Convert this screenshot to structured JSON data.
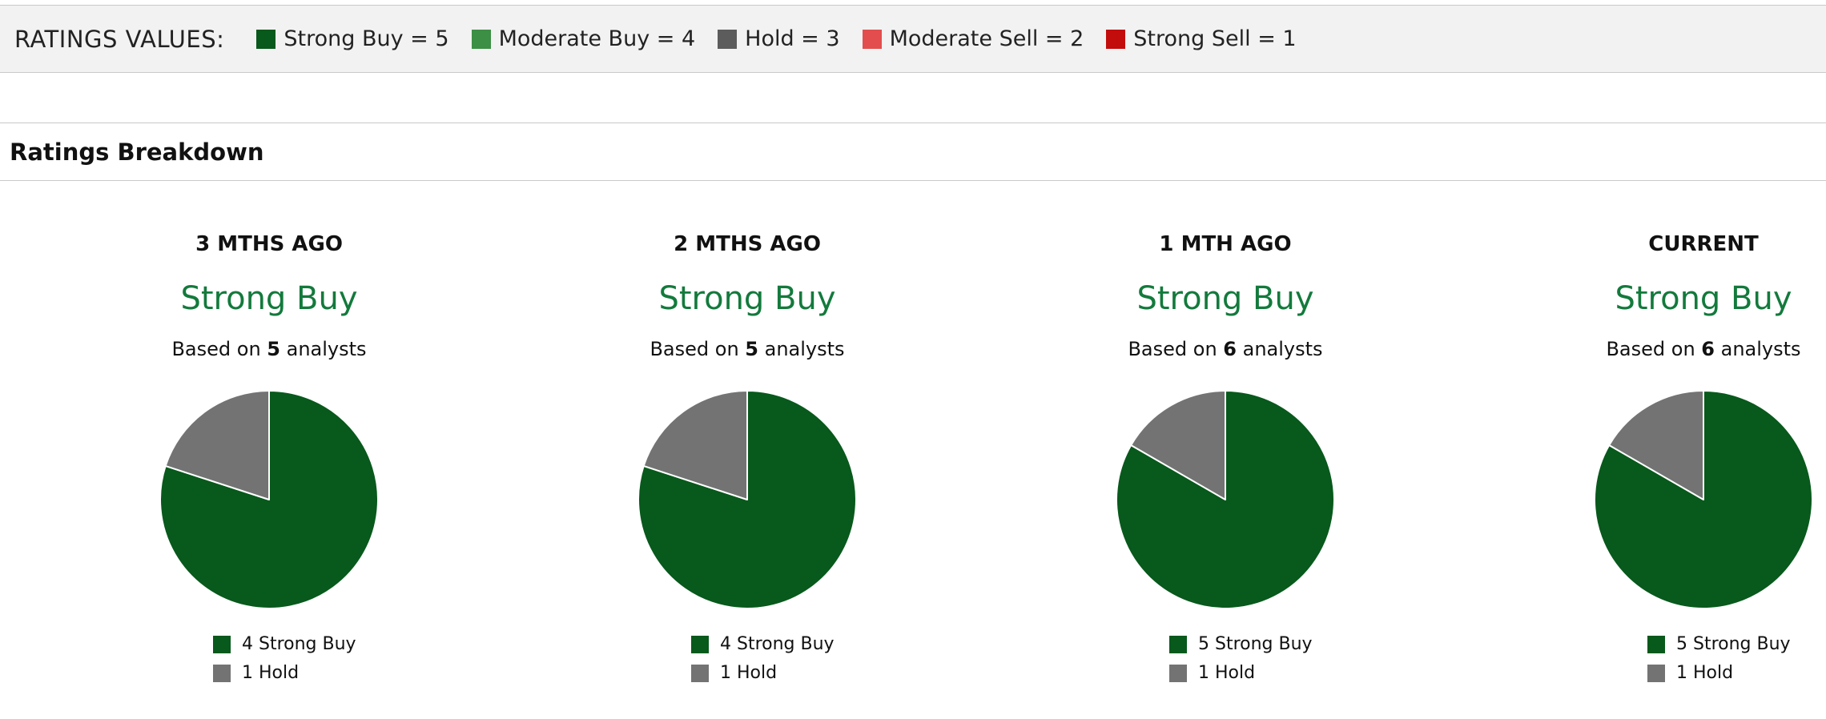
{
  "ratings_values": {
    "title": "RATINGS VALUES:",
    "items": [
      {
        "label": "Strong Buy = 5",
        "color": "#08591c"
      },
      {
        "label": "Moderate Buy = 4",
        "color": "#3c8f45"
      },
      {
        "label": "Hold = 3",
        "color": "#5c5c5c"
      },
      {
        "label": "Moderate Sell = 2",
        "color": "#e34d4d"
      },
      {
        "label": "Strong Sell = 1",
        "color": "#c30c0c"
      }
    ]
  },
  "breakdown": {
    "title": "Ratings Breakdown"
  },
  "colors": {
    "strong_buy": "#08591c",
    "hold": "#737373",
    "rating_text": "#137a3c"
  },
  "chart_data": [
    {
      "type": "pie",
      "title": "3 MTHS AGO",
      "rating": "Strong Buy",
      "based_prefix": "Based on ",
      "analysts": "5",
      "based_suffix": " analysts",
      "slices": [
        {
          "legend": "4 Strong Buy",
          "value": 4,
          "color": "#08591c"
        },
        {
          "legend": "1 Hold",
          "value": 1,
          "color": "#737373"
        }
      ]
    },
    {
      "type": "pie",
      "title": "2 MTHS AGO",
      "rating": "Strong Buy",
      "based_prefix": "Based on ",
      "analysts": "5",
      "based_suffix": " analysts",
      "slices": [
        {
          "legend": "4 Strong Buy",
          "value": 4,
          "color": "#08591c"
        },
        {
          "legend": "1 Hold",
          "value": 1,
          "color": "#737373"
        }
      ]
    },
    {
      "type": "pie",
      "title": "1 MTH AGO",
      "rating": "Strong Buy",
      "based_prefix": "Based on ",
      "analysts": "6",
      "based_suffix": " analysts",
      "slices": [
        {
          "legend": "5 Strong Buy",
          "value": 5,
          "color": "#08591c"
        },
        {
          "legend": "1 Hold",
          "value": 1,
          "color": "#737373"
        }
      ]
    },
    {
      "type": "pie",
      "title": "CURRENT",
      "rating": "Strong Buy",
      "based_prefix": "Based on ",
      "analysts": "6",
      "based_suffix": " analysts",
      "slices": [
        {
          "legend": "5 Strong Buy",
          "value": 5,
          "color": "#08591c"
        },
        {
          "legend": "1 Hold",
          "value": 1,
          "color": "#737373"
        }
      ]
    }
  ]
}
